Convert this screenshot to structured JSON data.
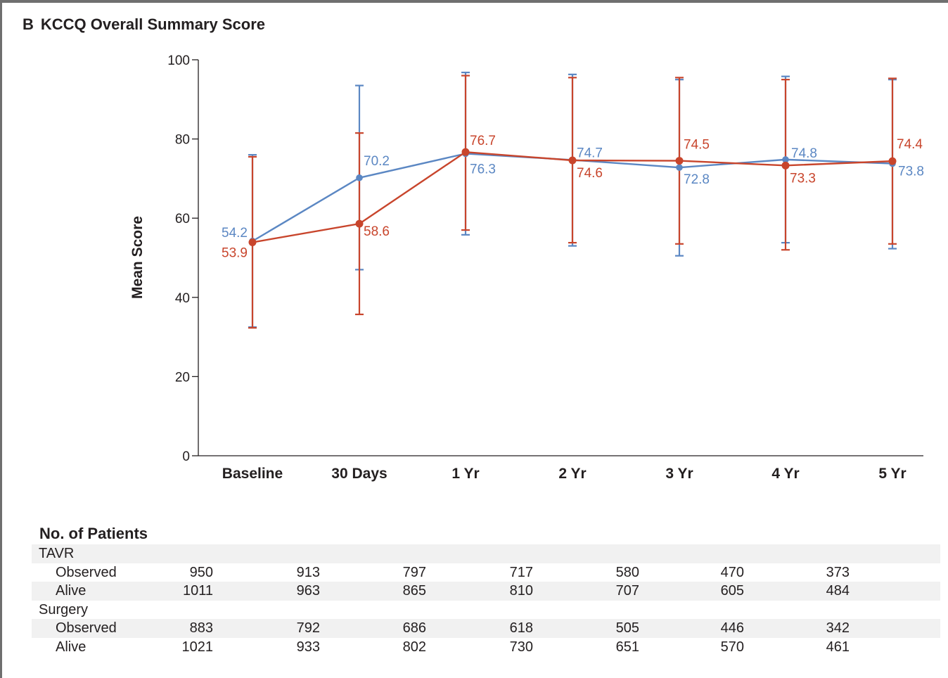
{
  "panel": {
    "letter": "B",
    "title": "KCCQ Overall Summary Score"
  },
  "chart_data": {
    "type": "line",
    "title": "KCCQ Overall Summary Score",
    "ylabel": "Mean Score",
    "xlabel": "",
    "categories": [
      "Baseline",
      "30 Days",
      "1 Yr",
      "2 Yr",
      "3 Yr",
      "4 Yr",
      "5 Yr"
    ],
    "ylim": [
      0,
      100
    ],
    "yticks": [
      0,
      20,
      40,
      60,
      80,
      100
    ],
    "grid": false,
    "series": [
      {
        "color": "#5b87c3",
        "values": [
          54.2,
          70.2,
          76.3,
          74.7,
          72.8,
          74.8,
          73.8
        ],
        "labels": [
          "54.2",
          "70.2",
          "76.3",
          "74.7",
          "72.8",
          "74.8",
          "73.8"
        ],
        "err_high": [
          76,
          93.5,
          96.8,
          96.3,
          95,
          95.8,
          95
        ],
        "err_low": [
          32.5,
          47,
          55.8,
          53,
          50.5,
          53.8,
          52.3
        ]
      },
      {
        "color": "#c8452c",
        "values": [
          53.9,
          58.6,
          76.7,
          74.6,
          74.5,
          73.3,
          74.4
        ],
        "labels": [
          "53.9",
          "58.6",
          "76.7",
          "74.6",
          "74.5",
          "73.3",
          "74.4"
        ],
        "err_high": [
          75.5,
          81.5,
          96,
          95.5,
          95.5,
          95,
          95.3
        ],
        "err_low": [
          32.3,
          35.7,
          57,
          53.8,
          53.5,
          52,
          53.5
        ]
      }
    ]
  },
  "patients_table": {
    "title": "No. of Patients",
    "rows": [
      {
        "label": "TAVR",
        "kind": "group",
        "values": []
      },
      {
        "label": "Observed",
        "kind": "sub",
        "values": [
          "950",
          "913",
          "797",
          "717",
          "580",
          "470",
          "373"
        ]
      },
      {
        "label": "Alive",
        "kind": "sub",
        "values": [
          "1011",
          "963",
          "865",
          "810",
          "707",
          "605",
          "484"
        ]
      },
      {
        "label": "Surgery",
        "kind": "group",
        "values": []
      },
      {
        "label": "Observed",
        "kind": "sub",
        "values": [
          "883",
          "792",
          "686",
          "618",
          "505",
          "446",
          "342"
        ]
      },
      {
        "label": "Alive",
        "kind": "sub",
        "values": [
          "1021",
          "933",
          "802",
          "730",
          "651",
          "570",
          "461"
        ]
      }
    ]
  }
}
